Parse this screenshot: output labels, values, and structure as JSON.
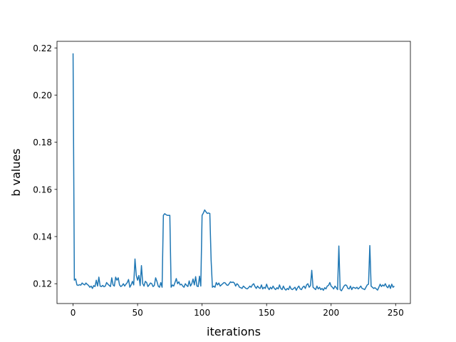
{
  "chart_data": {
    "type": "line",
    "xlabel": "iterations",
    "ylabel": "b values",
    "xlim": [
      -12.45,
      261.45
    ],
    "ylim": [
      0.1116,
      0.2228
    ],
    "xticks": [
      0,
      50,
      100,
      150,
      200,
      250
    ],
    "yticks": [
      0.12,
      0.14,
      0.16,
      0.18,
      {
        "value": 0.2,
        "label": "0.20"
      },
      0.22
    ],
    "x": [
      0,
      1,
      2,
      3,
      4,
      5,
      6,
      7,
      8,
      9,
      10,
      11,
      12,
      13,
      14,
      15,
      16,
      17,
      18,
      19,
      20,
      21,
      22,
      23,
      24,
      25,
      26,
      27,
      28,
      29,
      30,
      31,
      32,
      33,
      34,
      35,
      36,
      37,
      38,
      39,
      40,
      41,
      42,
      43,
      44,
      45,
      46,
      47,
      48,
      49,
      50,
      51,
      52,
      53,
      54,
      55,
      56,
      57,
      58,
      59,
      60,
      61,
      62,
      63,
      64,
      65,
      66,
      67,
      68,
      69,
      70,
      71,
      72,
      73,
      74,
      75,
      76,
      77,
      78,
      79,
      80,
      81,
      82,
      83,
      84,
      85,
      86,
      87,
      88,
      89,
      90,
      91,
      92,
      93,
      94,
      95,
      96,
      97,
      98,
      99,
      100,
      101,
      102,
      103,
      104,
      105,
      106,
      107,
      108,
      109,
      110,
      111,
      112,
      113,
      114,
      115,
      116,
      117,
      118,
      119,
      120,
      121,
      122,
      123,
      124,
      125,
      126,
      127,
      128,
      129,
      130,
      131,
      132,
      133,
      134,
      135,
      136,
      137,
      138,
      139,
      140,
      141,
      142,
      143,
      144,
      145,
      146,
      147,
      148,
      149,
      150,
      151,
      152,
      153,
      154,
      155,
      156,
      157,
      158,
      159,
      160,
      161,
      162,
      163,
      164,
      165,
      166,
      167,
      168,
      169,
      170,
      171,
      172,
      173,
      174,
      175,
      176,
      177,
      178,
      179,
      180,
      181,
      182,
      183,
      184,
      185,
      186,
      187,
      188,
      189,
      190,
      191,
      192,
      193,
      194,
      195,
      196,
      197,
      198,
      199,
      200,
      201,
      202,
      203,
      204,
      205,
      206,
      207,
      208,
      209,
      210,
      211,
      212,
      213,
      214,
      215,
      216,
      217,
      218,
      219,
      220,
      221,
      222,
      223,
      224,
      225,
      226,
      227,
      228,
      229,
      230,
      231,
      232,
      233,
      234,
      235,
      236,
      237,
      238,
      239,
      240,
      241,
      242,
      243,
      244,
      245,
      246,
      247,
      248,
      249
    ],
    "series": [
      {
        "color": "#1f77b4",
        "values": [
          0.2177,
          0.1215,
          0.122,
          0.1195,
          0.1193,
          0.1196,
          0.1194,
          0.1203,
          0.1198,
          0.1195,
          0.1203,
          0.1197,
          0.1193,
          0.1185,
          0.119,
          0.118,
          0.1192,
          0.1188,
          0.1215,
          0.119,
          0.1228,
          0.119,
          0.1188,
          0.1193,
          0.1187,
          0.119,
          0.1205,
          0.1198,
          0.1193,
          0.1188,
          0.1225,
          0.1195,
          0.119,
          0.1228,
          0.1215,
          0.1225,
          0.1195,
          0.1188,
          0.1192,
          0.12,
          0.119,
          0.1198,
          0.1205,
          0.1218,
          0.1185,
          0.1195,
          0.121,
          0.1195,
          0.1305,
          0.1235,
          0.1215,
          0.1235,
          0.1192,
          0.1277,
          0.12,
          0.119,
          0.121,
          0.1205,
          0.1188,
          0.1195,
          0.1203,
          0.12,
          0.1188,
          0.1193,
          0.1225,
          0.121,
          0.119,
          0.1185,
          0.1205,
          0.1185,
          0.149,
          0.1497,
          0.1493,
          0.149,
          0.149,
          0.149,
          0.1185,
          0.1195,
          0.119,
          0.1205,
          0.1222,
          0.12,
          0.1208,
          0.1195,
          0.1198,
          0.119,
          0.1185,
          0.12,
          0.1193,
          0.1188,
          0.1212,
          0.119,
          0.12,
          0.122,
          0.1195,
          0.123,
          0.119,
          0.1188,
          0.1232,
          0.119,
          0.149,
          0.15,
          0.1513,
          0.1505,
          0.1498,
          0.15,
          0.1498,
          0.13,
          0.1185,
          0.119,
          0.1185,
          0.1205,
          0.1195,
          0.1203,
          0.119,
          0.1195,
          0.12,
          0.1205,
          0.1203,
          0.1195,
          0.1193,
          0.12,
          0.1208,
          0.1205,
          0.1207,
          0.1203,
          0.119,
          0.12,
          0.1195,
          0.1185,
          0.1183,
          0.118,
          0.119,
          0.1185,
          0.118,
          0.1178,
          0.1183,
          0.119,
          0.1185,
          0.1195,
          0.12,
          0.1188,
          0.118,
          0.119,
          0.1183,
          0.118,
          0.1195,
          0.1178,
          0.1185,
          0.118,
          0.1198,
          0.1183,
          0.1175,
          0.1185,
          0.1178,
          0.119,
          0.118,
          0.1175,
          0.1183,
          0.1178,
          0.1195,
          0.118,
          0.1175,
          0.119,
          0.1178,
          0.1173,
          0.118,
          0.1175,
          0.119,
          0.1178,
          0.1175,
          0.118,
          0.1185,
          0.1172,
          0.1183,
          0.119,
          0.1178,
          0.1175,
          0.1185,
          0.119,
          0.118,
          0.1195,
          0.12,
          0.1185,
          0.1192,
          0.1257,
          0.1185,
          0.118,
          0.1175,
          0.119,
          0.1178,
          0.1185,
          0.1175,
          0.118,
          0.1172,
          0.1183,
          0.1178,
          0.119,
          0.1193,
          0.1205,
          0.119,
          0.1185,
          0.1178,
          0.119,
          0.1183,
          0.1175,
          0.136,
          0.1175,
          0.117,
          0.118,
          0.119,
          0.1195,
          0.1193,
          0.118,
          0.1178,
          0.119,
          0.1175,
          0.1185,
          0.1183,
          0.118,
          0.1185,
          0.1178,
          0.1183,
          0.119,
          0.118,
          0.1178,
          0.1175,
          0.1185,
          0.1195,
          0.1198,
          0.1362,
          0.119,
          0.1185,
          0.118,
          0.1183,
          0.1178,
          0.1173,
          0.1185,
          0.1198,
          0.1188,
          0.1195,
          0.119,
          0.12,
          0.1188,
          0.1183,
          0.1195,
          0.118,
          0.1198,
          0.1185,
          0.119
        ]
      }
    ]
  }
}
